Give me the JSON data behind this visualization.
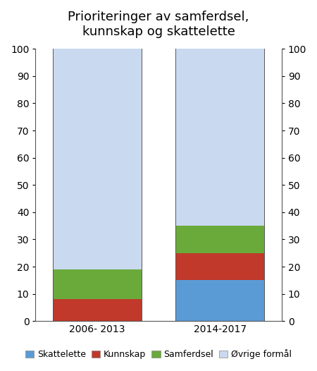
{
  "categories": [
    "2006- 2013",
    "2014-2017"
  ],
  "series": {
    "Skattelette": [
      0,
      15
    ],
    "Kunnskap": [
      8,
      10
    ],
    "Samferdsel": [
      11,
      10
    ],
    "Øvrige formål": [
      81,
      65
    ]
  },
  "colors": {
    "Skattelette": "#5b9bd5",
    "Kunnskap": "#c0392b",
    "Samferdsel": "#6aaa3a",
    "Øvrige formål": "#c9d9f0"
  },
  "ylim": [
    0,
    100
  ],
  "yticks": [
    0,
    10,
    20,
    30,
    40,
    50,
    60,
    70,
    80,
    90,
    100
  ],
  "title_line1": "Prioriteringer av samferdsel,",
  "title_line2": "kunnskap og skattelette",
  "title_fontsize": 13,
  "legend_fontsize": 9,
  "tick_fontsize": 10,
  "bar_width": 0.72,
  "background_color": "#ffffff",
  "bar_order": [
    "Skattelette",
    "Kunnskap",
    "Samferdsel",
    "Øvrige formål"
  ]
}
